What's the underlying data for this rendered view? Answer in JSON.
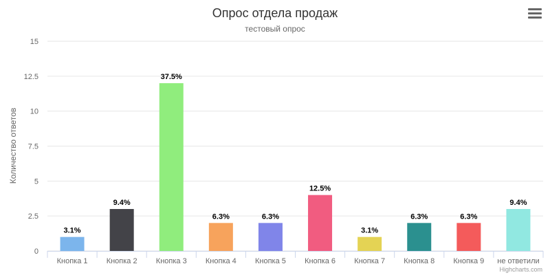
{
  "chart_data": {
    "type": "bar",
    "title": "Опрос отдела продаж",
    "subtitle": "тестовый опрос",
    "xlabel": "",
    "ylabel": "Количество ответов",
    "ylim": [
      0,
      15
    ],
    "y_ticks": [
      "0",
      "2.5",
      "5",
      "7.5",
      "10",
      "12.5",
      "15"
    ],
    "y_tick_values": [
      0,
      2.5,
      5,
      7.5,
      10,
      12.5,
      15
    ],
    "grid": true,
    "legend": "none",
    "categories": [
      "Кнопка 1",
      "Кнопка 2",
      "Кнопка 3",
      "Кнопка 4",
      "Кнопка 5",
      "Кнопка 6",
      "Кнопка 7",
      "Кнопка 8",
      "Кнопка 9",
      "не ответили"
    ],
    "values": [
      1,
      3,
      12,
      2,
      2,
      4,
      1,
      2,
      2,
      3
    ],
    "data_labels": [
      "3.1%",
      "9.4%",
      "37.5%",
      "6.3%",
      "6.3%",
      "12.5%",
      "3.1%",
      "6.3%",
      "6.3%",
      "9.4%"
    ],
    "colors": [
      "#7cb5ec",
      "#434348",
      "#90ed7d",
      "#f7a35c",
      "#8085e9",
      "#f15c80",
      "#e4d354",
      "#2b908f",
      "#f45b5b",
      "#91e8e1"
    ]
  },
  "credits": "Highcharts.com",
  "menu": {
    "icon": "hamburger-menu-icon"
  }
}
